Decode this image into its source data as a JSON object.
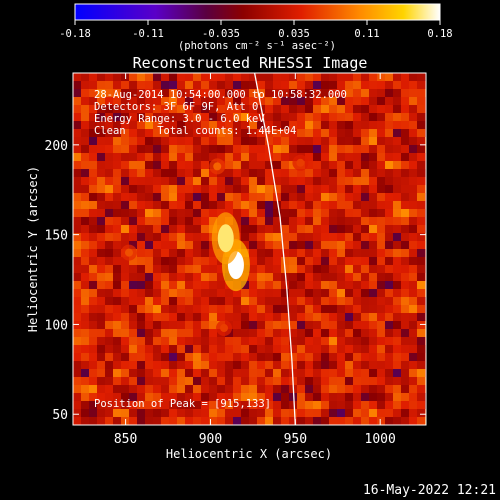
{
  "colorbar": {
    "ticks": [
      "-0.18",
      "-0.11",
      "-0.035",
      "0.035",
      "0.11",
      "0.18"
    ],
    "units_line": "(photons cm⁻² s⁻¹ asec⁻²)"
  },
  "info": {
    "time_range": "28-Aug-2014 10:54:00.000 to 10:58:32.000",
    "detectors": "Detectors: 3F 6F 9F, Att 0",
    "energy": "Energy Range: 3.0 - 6.0 keV",
    "clean": "Clean     Total counts: 1.44E+04",
    "peak": "Position of Peak = [915,133]"
  },
  "footer": {
    "timestamp": "16-May-2022 12:21"
  },
  "chart_data": {
    "type": "heatmap",
    "title": "Reconstructed RHESSI Image",
    "xlabel": "Heliocentric X (arcsec)",
    "ylabel": "Heliocentric Y (arcsec)",
    "xlim": [
      819,
      1027
    ],
    "ylim": [
      44,
      240
    ],
    "xticks": [
      850,
      900,
      950,
      1000
    ],
    "yticks": [
      50,
      100,
      150,
      200
    ],
    "colorbar_range": [
      -0.18,
      0.18
    ],
    "colortable": "red temperature",
    "peak": {
      "x": 915,
      "y": 133
    },
    "sources": [
      {
        "x": 915,
        "y": 133,
        "value": 0.18
      },
      {
        "x": 909,
        "y": 148,
        "value": 0.16
      },
      {
        "x": 904,
        "y": 188,
        "value": 0.08
      },
      {
        "x": 852,
        "y": 140,
        "value": 0.07
      },
      {
        "x": 953,
        "y": 190,
        "value": 0.06
      },
      {
        "x": 908,
        "y": 98,
        "value": 0.06
      }
    ],
    "limb": [
      [
        926,
        240
      ],
      [
        934,
        200
      ],
      [
        941,
        160
      ],
      [
        945,
        120
      ],
      [
        948,
        80
      ],
      [
        950,
        44
      ]
    ]
  }
}
